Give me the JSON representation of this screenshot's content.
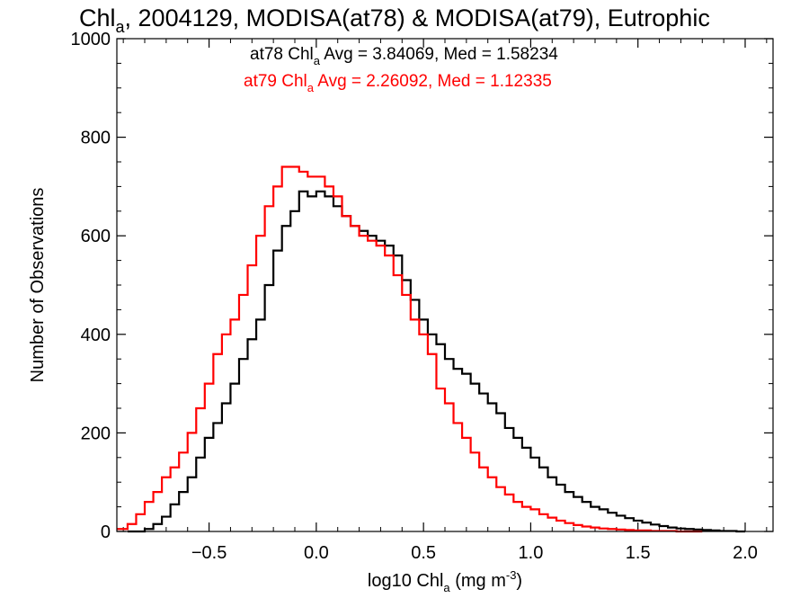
{
  "chart_data": {
    "type": "line",
    "title": {
      "prefix": "Chl",
      "sub": "a",
      "rest": ", 2004129, MODISA(at78) & MODISA(at79), Eutrophic"
    },
    "xlabel": {
      "prefix": "log10 Chl",
      "sub": "a",
      "mid": " (mg m",
      "sup": "-3",
      "end": ")"
    },
    "ylabel": "Number of Observations",
    "xlim": [
      -0.93,
      2.13
    ],
    "ylim": [
      0,
      1000
    ],
    "x_ticks": [
      {
        "value": -0.5,
        "label": "−0.5"
      },
      {
        "value": 0.0,
        "label": "0.0"
      },
      {
        "value": 0.5,
        "label": "0.5"
      },
      {
        "value": 1.0,
        "label": "1.0"
      },
      {
        "value": 1.5,
        "label": "1.5"
      },
      {
        "value": 2.0,
        "label": "2.0"
      }
    ],
    "y_ticks": [
      {
        "value": 0,
        "label": "0"
      },
      {
        "value": 200,
        "label": "200"
      },
      {
        "value": 400,
        "label": "400"
      },
      {
        "value": 600,
        "label": "600"
      },
      {
        "value": 800,
        "label": "800"
      },
      {
        "value": 1000,
        "label": "1000"
      }
    ],
    "grid": false,
    "annotations": [
      {
        "prefix": "at78 Chl",
        "sub": "a",
        "rest": " Avg = 3.84069, Med = 1.58234",
        "color": "#000000"
      },
      {
        "prefix": "at79 Chl",
        "sub": "a",
        "rest": " Avg = 2.26092, Med = 1.12335",
        "color": "#ff0000"
      }
    ],
    "series": [
      {
        "color": "#000000",
        "step": true,
        "x": [
          -0.88,
          -0.8,
          -0.76,
          -0.72,
          -0.68,
          -0.64,
          -0.6,
          -0.56,
          -0.52,
          -0.48,
          -0.44,
          -0.4,
          -0.36,
          -0.32,
          -0.28,
          -0.24,
          -0.2,
          -0.16,
          -0.12,
          -0.08,
          -0.04,
          0.0,
          0.04,
          0.08,
          0.12,
          0.16,
          0.2,
          0.24,
          0.28,
          0.32,
          0.36,
          0.4,
          0.44,
          0.48,
          0.52,
          0.56,
          0.6,
          0.64,
          0.68,
          0.72,
          0.76,
          0.8,
          0.84,
          0.88,
          0.92,
          0.96,
          1.0,
          1.04,
          1.08,
          1.12,
          1.16,
          1.2,
          1.24,
          1.28,
          1.32,
          1.36,
          1.4,
          1.44,
          1.48,
          1.52,
          1.56,
          1.6,
          1.64,
          1.68,
          1.72,
          1.76,
          1.8,
          1.84,
          1.88,
          1.92,
          1.96,
          2.0
        ],
        "y": [
          0,
          5,
          15,
          30,
          55,
          80,
          110,
          150,
          190,
          220,
          260,
          300,
          350,
          390,
          430,
          500,
          570,
          620,
          650,
          690,
          680,
          690,
          680,
          660,
          640,
          620,
          610,
          600,
          590,
          580,
          560,
          510,
          470,
          430,
          400,
          380,
          350,
          330,
          320,
          300,
          280,
          260,
          240,
          210,
          190,
          170,
          150,
          130,
          110,
          95,
          80,
          70,
          60,
          50,
          45,
          38,
          32,
          27,
          22,
          18,
          14,
          11,
          8,
          6,
          5,
          4,
          3,
          2,
          1,
          1,
          0,
          0
        ]
      },
      {
        "color": "#ff0000",
        "step": true,
        "x": [
          -0.93,
          -0.88,
          -0.84,
          -0.8,
          -0.76,
          -0.72,
          -0.68,
          -0.64,
          -0.6,
          -0.56,
          -0.52,
          -0.48,
          -0.44,
          -0.4,
          -0.36,
          -0.32,
          -0.28,
          -0.24,
          -0.2,
          -0.16,
          -0.12,
          -0.08,
          -0.04,
          0.0,
          0.04,
          0.08,
          0.12,
          0.16,
          0.2,
          0.24,
          0.28,
          0.32,
          0.36,
          0.4,
          0.44,
          0.48,
          0.52,
          0.56,
          0.6,
          0.64,
          0.68,
          0.72,
          0.76,
          0.8,
          0.84,
          0.88,
          0.92,
          0.96,
          1.0,
          1.04,
          1.08,
          1.12,
          1.16,
          1.2,
          1.24,
          1.28,
          1.32,
          1.36,
          1.4,
          1.44,
          1.48,
          1.52,
          1.56,
          1.6,
          1.64,
          1.68,
          1.72,
          1.76,
          1.8
        ],
        "y": [
          5,
          15,
          35,
          60,
          80,
          110,
          130,
          160,
          200,
          250,
          300,
          360,
          400,
          430,
          480,
          540,
          600,
          660,
          700,
          740,
          740,
          730,
          720,
          720,
          700,
          680,
          640,
          620,
          600,
          590,
          580,
          560,
          520,
          480,
          430,
          400,
          360,
          290,
          260,
          220,
          190,
          160,
          130,
          110,
          90,
          75,
          60,
          50,
          45,
          35,
          28,
          22,
          17,
          13,
          10,
          8,
          6,
          5,
          4,
          3,
          2,
          2,
          1,
          1,
          1,
          0,
          0,
          0,
          0
        ]
      }
    ]
  }
}
